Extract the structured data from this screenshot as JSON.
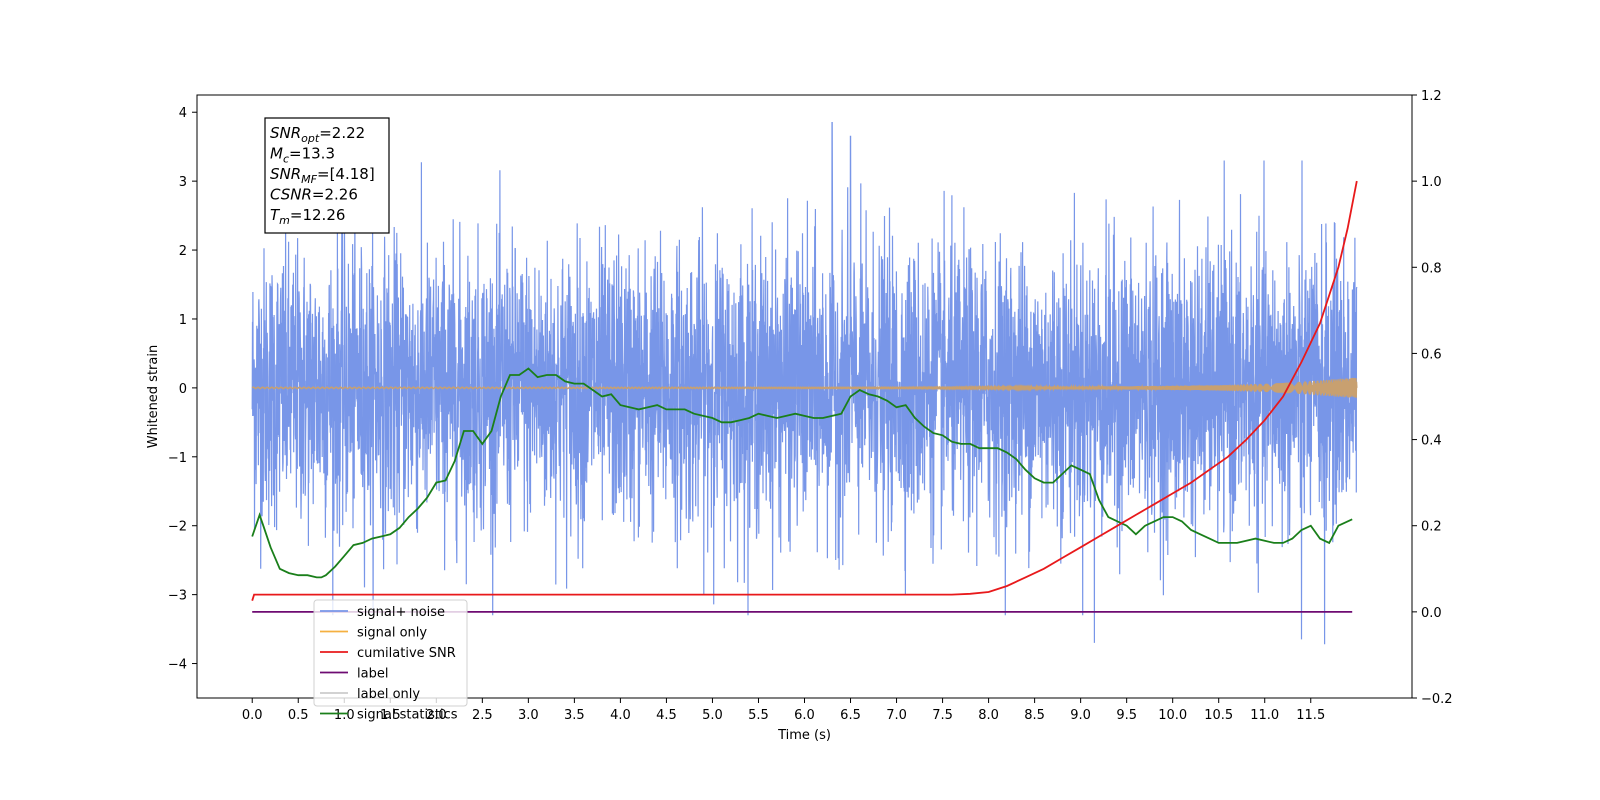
{
  "chart_data": {
    "type": "line",
    "xlabel": "Time (s)",
    "ylabel_left": "Whitened strain",
    "ylabel_right": "",
    "xlim": [
      -0.6,
      12.6
    ],
    "ylim_left": [
      -4.5,
      4.25
    ],
    "ylim_right": [
      -0.2,
      1.2
    ],
    "x_ticks": [
      "0.0",
      "0.5",
      "1.0",
      "1.5",
      "2.0",
      "2.5",
      "3.0",
      "3.5",
      "4.0",
      "4.5",
      "5.0",
      "5.5",
      "6.0",
      "6.5",
      "7.0",
      "7.5",
      "8.0",
      "8.5",
      "9.0",
      "9.5",
      "10.0",
      "10.5",
      "11.0",
      "11.5"
    ],
    "y_ticks_left": [
      "4",
      "3",
      "2",
      "1",
      "0",
      "−1",
      "−2",
      "−3",
      "−4"
    ],
    "y_ticks_right": [
      "1.2",
      "1.0",
      "0.8",
      "0.6",
      "0.4",
      "0.2",
      "0.0",
      "−0.2"
    ],
    "grid": false,
    "legend_position": "lower-left",
    "stats_box": {
      "lines": [
        {
          "var": "SNR",
          "sub": "opt",
          "value": "=2.22"
        },
        {
          "var": "M",
          "sub": "c",
          "value": "=13.3"
        },
        {
          "var": "SNR",
          "sub": "MF",
          "value": "=[4.18]"
        },
        {
          "var": "CSNR",
          "sub": "",
          "value": "=2.26"
        },
        {
          "var": "T",
          "sub": "m",
          "value": "=12.26"
        }
      ]
    },
    "series": [
      {
        "name": "signal+ noise",
        "axis": "left",
        "color": "#7896e8",
        "x_range": [
          0.0,
          12.0
        ],
        "approx_std": 1.0,
        "notable_peaks": [
          [
            6.3,
            3.85
          ],
          [
            6.5,
            3.65
          ],
          [
            9.15,
            -3.7
          ],
          [
            11.65,
            -3.72
          ],
          [
            11.4,
            -3.65
          ]
        ]
      },
      {
        "name": "signal only",
        "axis": "left",
        "color": "#f5b041",
        "x_range": [
          0.0,
          12.0
        ],
        "envelope_x": [
          0,
          7,
          8,
          9,
          10,
          10.5,
          11,
          11.3,
          11.6,
          11.8,
          12.0
        ],
        "envelope_y": [
          0.01,
          0.01,
          0.015,
          0.02,
          0.03,
          0.04,
          0.06,
          0.08,
          0.11,
          0.13,
          0.15
        ]
      },
      {
        "name": "cumilative SNR",
        "axis": "right",
        "color": "#e8191b",
        "x": [
          0.0,
          0.02,
          7.6,
          7.8,
          8.0,
          8.2,
          8.4,
          8.6,
          8.8,
          9.0,
          9.2,
          9.4,
          9.6,
          9.8,
          10.0,
          10.2,
          10.4,
          10.6,
          10.8,
          11.0,
          11.2,
          11.4,
          11.6,
          11.8,
          11.9,
          12.0
        ],
        "values": [
          0.026,
          0.04,
          0.04,
          0.042,
          0.046,
          0.06,
          0.08,
          0.1,
          0.125,
          0.15,
          0.175,
          0.2,
          0.225,
          0.25,
          0.275,
          0.3,
          0.33,
          0.36,
          0.4,
          0.445,
          0.5,
          0.58,
          0.67,
          0.8,
          0.89,
          1.0
        ]
      },
      {
        "name": "label",
        "axis": "right",
        "color": "#6e0b72",
        "x": [
          0.0,
          11.95
        ],
        "values": [
          0.0,
          0.0
        ]
      },
      {
        "name": "label only",
        "axis": "right",
        "color": "#cccccc",
        "x": [],
        "values": []
      },
      {
        "name": "signal statistics",
        "axis": "right",
        "color": "#1a7f1a",
        "x": [
          0.0,
          0.08,
          0.12,
          0.2,
          0.3,
          0.4,
          0.5,
          0.6,
          0.7,
          0.75,
          0.8,
          0.9,
          1.0,
          1.1,
          1.2,
          1.3,
          1.4,
          1.5,
          1.6,
          1.7,
          1.8,
          1.9,
          2.0,
          2.1,
          2.2,
          2.3,
          2.4,
          2.5,
          2.6,
          2.7,
          2.8,
          2.9,
          3.0,
          3.1,
          3.2,
          3.3,
          3.4,
          3.5,
          3.6,
          3.7,
          3.8,
          3.9,
          4.0,
          4.1,
          4.2,
          4.3,
          4.4,
          4.5,
          4.6,
          4.7,
          4.8,
          4.9,
          5.0,
          5.1,
          5.2,
          5.3,
          5.4,
          5.5,
          5.6,
          5.7,
          5.8,
          5.9,
          6.0,
          6.1,
          6.2,
          6.3,
          6.4,
          6.5,
          6.6,
          6.7,
          6.8,
          6.9,
          7.0,
          7.1,
          7.2,
          7.3,
          7.4,
          7.5,
          7.6,
          7.7,
          7.8,
          7.9,
          8.0,
          8.1,
          8.2,
          8.3,
          8.4,
          8.5,
          8.6,
          8.7,
          8.8,
          8.9,
          9.0,
          9.1,
          9.2,
          9.3,
          9.4,
          9.5,
          9.6,
          9.7,
          9.8,
          9.9,
          10.0,
          10.1,
          10.2,
          10.3,
          10.4,
          10.5,
          10.6,
          10.7,
          10.8,
          10.9,
          11.0,
          11.1,
          11.2,
          11.3,
          11.4,
          11.5,
          11.6,
          11.7,
          11.8,
          11.9,
          11.95
        ],
        "values": [
          0.175,
          0.225,
          0.2,
          0.15,
          0.1,
          0.09,
          0.085,
          0.085,
          0.08,
          0.08,
          0.085,
          0.105,
          0.13,
          0.155,
          0.16,
          0.17,
          0.175,
          0.18,
          0.195,
          0.22,
          0.24,
          0.265,
          0.3,
          0.305,
          0.35,
          0.42,
          0.42,
          0.39,
          0.42,
          0.5,
          0.55,
          0.55,
          0.565,
          0.545,
          0.55,
          0.55,
          0.535,
          0.53,
          0.53,
          0.515,
          0.5,
          0.505,
          0.48,
          0.475,
          0.47,
          0.475,
          0.48,
          0.47,
          0.47,
          0.47,
          0.46,
          0.455,
          0.45,
          0.44,
          0.44,
          0.445,
          0.45,
          0.46,
          0.455,
          0.45,
          0.455,
          0.46,
          0.455,
          0.45,
          0.45,
          0.455,
          0.46,
          0.5,
          0.515,
          0.505,
          0.5,
          0.49,
          0.475,
          0.48,
          0.45,
          0.43,
          0.415,
          0.41,
          0.395,
          0.39,
          0.39,
          0.38,
          0.38,
          0.38,
          0.37,
          0.355,
          0.33,
          0.31,
          0.3,
          0.3,
          0.32,
          0.34,
          0.33,
          0.32,
          0.26,
          0.22,
          0.21,
          0.2,
          0.18,
          0.2,
          0.21,
          0.22,
          0.22,
          0.21,
          0.19,
          0.18,
          0.17,
          0.16,
          0.16,
          0.16,
          0.165,
          0.17,
          0.165,
          0.16,
          0.16,
          0.17,
          0.19,
          0.2,
          0.17,
          0.16,
          0.2,
          0.21,
          0.215
        ]
      }
    ],
    "legend": [
      {
        "label": "signal+ noise",
        "color": "#7896e8"
      },
      {
        "label": "signal only",
        "color": "#f5b041"
      },
      {
        "label": "cumilative SNR",
        "color": "#e8191b"
      },
      {
        "label": "label",
        "color": "#6e0b72"
      },
      {
        "label": "label only",
        "color": "#cccccc"
      },
      {
        "label": "signal statistics",
        "color": "#1a7f1a"
      }
    ]
  }
}
